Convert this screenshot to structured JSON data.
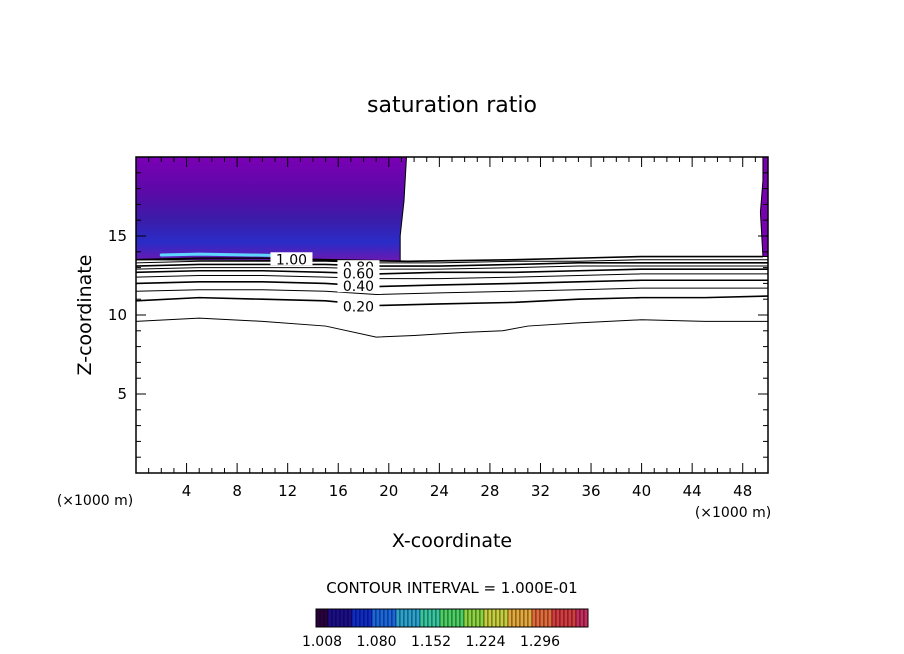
{
  "chart_data": {
    "type": "contour",
    "title": "saturation ratio",
    "xlabel": "X-coordinate",
    "ylabel": "Z-coordinate",
    "x_unit_left": "(×1000 m)",
    "x_unit_right": "(×1000 m)",
    "xlim": [
      0,
      50
    ],
    "ylim": [
      0,
      20
    ],
    "x_ticks": [
      4,
      8,
      12,
      16,
      20,
      24,
      28,
      32,
      36,
      40,
      44,
      48
    ],
    "y_ticks": [
      5,
      10,
      15
    ],
    "contour_interval_text": "CONTOUR INTERVAL = 1.000E-01",
    "contour_labels": [
      {
        "text": "1.00",
        "x": 12.3,
        "z": 13.4
      },
      {
        "text": "0.80",
        "x": 17.6,
        "z": 12.9
      },
      {
        "text": "0.60",
        "x": 17.6,
        "z": 12.5
      },
      {
        "text": "0.40",
        "x": 17.6,
        "z": 11.7
      },
      {
        "text": "0.20",
        "x": 17.6,
        "z": 10.4
      }
    ],
    "contour_lines": [
      {
        "level": 0.1,
        "x": [
          0,
          5,
          10,
          15,
          19,
          22,
          26,
          29,
          31,
          35,
          40,
          45,
          50
        ],
        "z": [
          9.6,
          9.8,
          9.6,
          9.3,
          8.6,
          8.7,
          8.9,
          9.0,
          9.3,
          9.5,
          9.7,
          9.6,
          9.6
        ]
      },
      {
        "level": 0.2,
        "x": [
          0,
          5,
          10,
          15,
          19,
          24,
          30,
          35,
          40,
          45,
          50
        ],
        "z": [
          10.9,
          11.1,
          11.0,
          10.9,
          10.6,
          10.7,
          10.8,
          11.0,
          11.1,
          11.1,
          11.2
        ]
      },
      {
        "level": 0.3,
        "x": [
          0,
          5,
          10,
          15,
          19,
          24,
          30,
          35,
          40,
          45,
          50
        ],
        "z": [
          11.5,
          11.6,
          11.6,
          11.5,
          11.3,
          11.4,
          11.5,
          11.6,
          11.7,
          11.7,
          11.7
        ]
      },
      {
        "level": 0.4,
        "x": [
          0,
          5,
          10,
          15,
          19,
          24,
          30,
          35,
          40,
          45,
          50
        ],
        "z": [
          12.0,
          12.1,
          12.1,
          12.0,
          11.8,
          11.9,
          12.0,
          12.1,
          12.2,
          12.2,
          12.2
        ]
      },
      {
        "level": 0.5,
        "x": [
          0,
          5,
          10,
          15,
          19,
          24,
          30,
          35,
          40,
          45,
          50
        ],
        "z": [
          12.4,
          12.5,
          12.5,
          12.4,
          12.3,
          12.3,
          12.4,
          12.5,
          12.6,
          12.6,
          12.6
        ]
      },
      {
        "level": 0.6,
        "x": [
          0,
          5,
          10,
          15,
          19,
          24,
          30,
          35,
          40,
          45,
          50
        ],
        "z": [
          12.7,
          12.8,
          12.8,
          12.7,
          12.6,
          12.7,
          12.7,
          12.8,
          12.9,
          12.9,
          12.9
        ]
      },
      {
        "level": 0.7,
        "x": [
          0,
          5,
          10,
          15,
          19,
          24,
          30,
          35,
          40,
          45,
          50
        ],
        "z": [
          12.9,
          13.0,
          13.0,
          13.0,
          12.9,
          12.9,
          13.0,
          13.1,
          13.1,
          13.1,
          13.1
        ]
      },
      {
        "level": 0.8,
        "x": [
          0,
          5,
          10,
          15,
          19,
          24,
          30,
          35,
          40,
          45,
          50
        ],
        "z": [
          13.1,
          13.2,
          13.2,
          13.2,
          13.1,
          13.1,
          13.2,
          13.3,
          13.3,
          13.3,
          13.3
        ]
      },
      {
        "level": 0.9,
        "x": [
          0,
          5,
          10,
          15,
          19,
          24,
          30,
          35,
          40,
          45,
          50
        ],
        "z": [
          13.3,
          13.4,
          13.4,
          13.4,
          13.3,
          13.3,
          13.4,
          13.4,
          13.5,
          13.5,
          13.5
        ]
      },
      {
        "level": 1.0,
        "x": [
          0,
          5,
          10,
          15,
          21.5,
          30,
          35,
          40,
          45,
          49.6
        ],
        "z": [
          13.5,
          13.6,
          13.6,
          13.5,
          13.4,
          13.5,
          13.6,
          13.7,
          13.7,
          13.7
        ]
      }
    ],
    "filled_regions": [
      {
        "name": "supersaturated-left",
        "color": "#7a00b4",
        "x": [
          0,
          21.4,
          21.2,
          20.9,
          20.9,
          0
        ],
        "z": [
          20,
          20,
          17.2,
          15.0,
          13.4,
          13.5
        ]
      },
      {
        "name": "supersaturated-right",
        "color": "#7a00b4",
        "x": [
          49.6,
          50,
          50,
          49.6,
          49.4,
          49.6
        ],
        "z": [
          20,
          20,
          13.7,
          13.7,
          16.5,
          18.5
        ]
      }
    ],
    "colorbar": {
      "ticks": [
        "1.008",
        "1.080",
        "1.152",
        "1.224",
        "1.296"
      ],
      "colors": [
        "#2a0040",
        "#1b0d8c",
        "#0f2bc9",
        "#1a66e0",
        "#2aa3cf",
        "#36c7a0",
        "#49d163",
        "#8ad43f",
        "#c8cf3c",
        "#e5a83a",
        "#e46a3a",
        "#d63b3f",
        "#c72e5e"
      ]
    }
  }
}
